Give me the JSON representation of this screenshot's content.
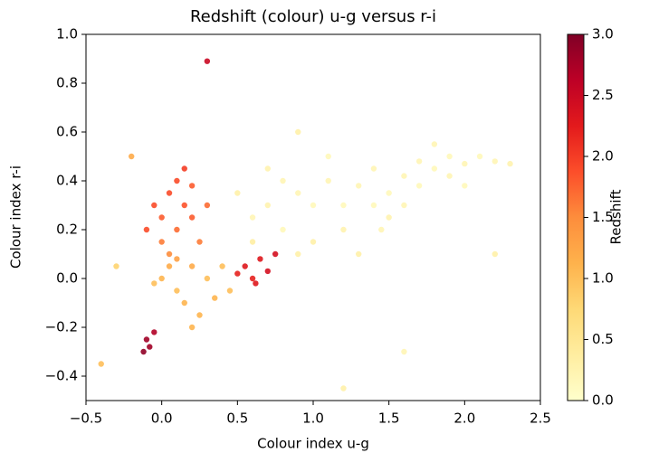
{
  "chart_data": {
    "type": "scatter",
    "title": "Redshift (colour) u-g versus r-i",
    "x_label": "Colour index  u-g",
    "y_label": "Colour index  r-i",
    "colorbar_label": "Redshift",
    "colormap_colors": [
      "#ffffcc",
      "#ffeda0",
      "#fed976",
      "#feb24c",
      "#fd8d3c",
      "#fc4e2a",
      "#e31a1c",
      "#bd0026",
      "#800026"
    ],
    "clim": [
      0,
      3
    ],
    "cticks": [
      {
        "value": 0,
        "label": "0.0"
      },
      {
        "value": 0.5,
        "label": "0.5"
      },
      {
        "value": 1,
        "label": "1.0"
      },
      {
        "value": 1.5,
        "label": "1.5"
      },
      {
        "value": 2,
        "label": "2.0"
      },
      {
        "value": 2.5,
        "label": "2.5"
      },
      {
        "value": 3,
        "label": "3.0"
      }
    ],
    "xlim": [
      -0.5,
      2.5
    ],
    "ylim": [
      -0.5,
      1.0
    ],
    "xticks": [
      {
        "value": -0.5,
        "label": "−0.5"
      },
      {
        "value": 0,
        "label": "0.0"
      },
      {
        "value": 0.5,
        "label": "0.5"
      },
      {
        "value": 1,
        "label": "1.0"
      },
      {
        "value": 1.5,
        "label": "1.5"
      },
      {
        "value": 2,
        "label": "2.0"
      },
      {
        "value": 2.5,
        "label": "2.5"
      }
    ],
    "yticks": [
      {
        "value": -0.4,
        "label": "−0.4"
      },
      {
        "value": -0.2,
        "label": "−0.2"
      },
      {
        "value": 0,
        "label": "0.0"
      },
      {
        "value": 0.2,
        "label": "0.2"
      },
      {
        "value": 0.4,
        "label": "0.4"
      },
      {
        "value": 0.6,
        "label": "0.6"
      },
      {
        "value": 0.8,
        "label": "0.8"
      },
      {
        "value": 1,
        "label": "1.0"
      }
    ],
    "x": [
      0.6,
      0.7,
      0.8,
      0.9,
      1.0,
      1.0,
      1.1,
      1.2,
      1.2,
      1.3,
      1.4,
      1.4,
      1.5,
      1.5,
      1.6,
      1.7,
      1.7,
      1.8,
      1.9,
      1.9,
      2.0,
      2.1,
      2.2,
      2.3,
      0.8,
      1.1,
      0.5,
      0.6,
      1.3,
      1.6,
      2.0,
      1.8,
      0.9,
      0.7,
      1.45,
      -0.05,
      0.0,
      0.05,
      0.1,
      0.15,
      0.2,
      0.0,
      0.1,
      0.2,
      0.25,
      -0.1,
      0.05,
      0.3,
      0.15,
      0.0,
      0.1,
      0.2,
      0.15,
      0.3,
      0.35,
      0.05,
      -0.05,
      0.25,
      0.4,
      0.1,
      0.2,
      0.45,
      0.55,
      0.6,
      0.65,
      0.7,
      0.62,
      0.5,
      0.75,
      -0.1,
      -0.08,
      -0.12,
      -0.05,
      -0.3,
      -0.4,
      1.6,
      2.2,
      0.3,
      1.2,
      -0.2,
      0.9
    ],
    "y": [
      0.25,
      0.3,
      0.2,
      0.35,
      0.3,
      0.15,
      0.4,
      0.3,
      0.2,
      0.38,
      0.3,
      0.45,
      0.35,
      0.25,
      0.42,
      0.38,
      0.48,
      0.45,
      0.42,
      0.5,
      0.47,
      0.5,
      0.48,
      0.47,
      0.4,
      0.5,
      0.35,
      0.15,
      0.1,
      0.3,
      0.38,
      0.55,
      0.1,
      0.45,
      0.2,
      0.3,
      0.25,
      0.35,
      0.2,
      0.3,
      0.25,
      0.15,
      0.4,
      0.38,
      0.15,
      0.2,
      0.1,
      0.3,
      0.45,
      0.0,
      -0.05,
      0.05,
      -0.1,
      0.0,
      -0.08,
      0.05,
      -0.02,
      -0.15,
      0.05,
      0.08,
      -0.2,
      -0.05,
      0.05,
      0.0,
      0.08,
      0.03,
      -0.02,
      0.02,
      0.1,
      -0.25,
      -0.28,
      -0.3,
      -0.22,
      0.05,
      -0.35,
      -0.3,
      0.1,
      0.89,
      -0.45,
      0.5,
      0.6
    ],
    "redshift": [
      0.2,
      0.25,
      0.15,
      0.2,
      0.15,
      0.3,
      0.2,
      0.15,
      0.25,
      0.2,
      0.15,
      0.2,
      0.15,
      0.25,
      0.2,
      0.15,
      0.2,
      0.15,
      0.2,
      0.15,
      0.2,
      0.15,
      0.2,
      0.25,
      0.2,
      0.15,
      0.3,
      0.35,
      0.3,
      0.2,
      0.15,
      0.2,
      0.3,
      0.25,
      0.2,
      1.9,
      1.8,
      1.9,
      1.7,
      1.85,
      1.8,
      1.6,
      1.9,
      1.8,
      1.6,
      1.9,
      1.5,
      1.7,
      2.0,
      1.1,
      1.0,
      1.2,
      1.1,
      1.0,
      1.1,
      1.2,
      1.0,
      1.1,
      1.0,
      1.3,
      1.1,
      1.0,
      2.3,
      2.2,
      2.3,
      2.4,
      2.3,
      2.2,
      2.4,
      2.8,
      2.8,
      2.9,
      2.7,
      0.8,
      1.0,
      0.2,
      0.3,
      2.5,
      0.3,
      1.2,
      0.3
    ]
  }
}
